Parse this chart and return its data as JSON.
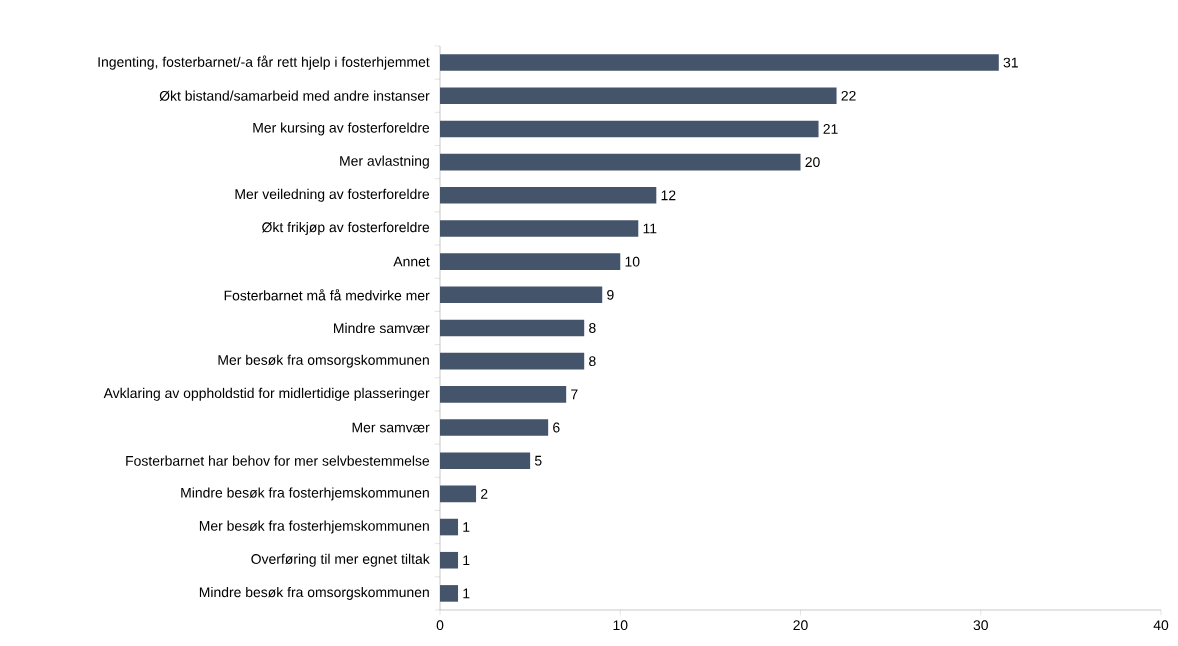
{
  "chart_data": {
    "type": "bar",
    "orientation": "horizontal",
    "categories": [
      "Ingenting, fosterbarnet/-a får rett hjelp i fosterhjemmet",
      "Økt bistand/samarbeid med andre instanser",
      "Mer kursing av fosterforeldre",
      "Mer avlastning",
      "Mer veiledning av fosterforeldre",
      "Økt frikjøp av fosterforeldre",
      "Annet",
      "Fosterbarnet må få medvirke mer",
      "Mindre samvær",
      "Mer besøk fra omsorgskommunen",
      "Avklaring av oppholdstid for midlertidige plasseringer",
      "Mer samvær",
      "Fosterbarnet har behov for mer selvbestemmelse",
      "Mindre besøk fra fosterhjemskommunen",
      "Mer besøk fra fosterhjemskommunen",
      "Overføring til mer egnet tiltak",
      "Mindre besøk fra omsorgskommunen"
    ],
    "values": [
      31,
      22,
      21,
      20,
      12,
      11,
      10,
      9,
      8,
      8,
      7,
      6,
      5,
      2,
      1,
      1,
      1
    ],
    "color": "#44546a",
    "xlim": [
      0,
      40
    ],
    "xticks": [
      0,
      10,
      20,
      30,
      40
    ],
    "data_labels": true
  }
}
